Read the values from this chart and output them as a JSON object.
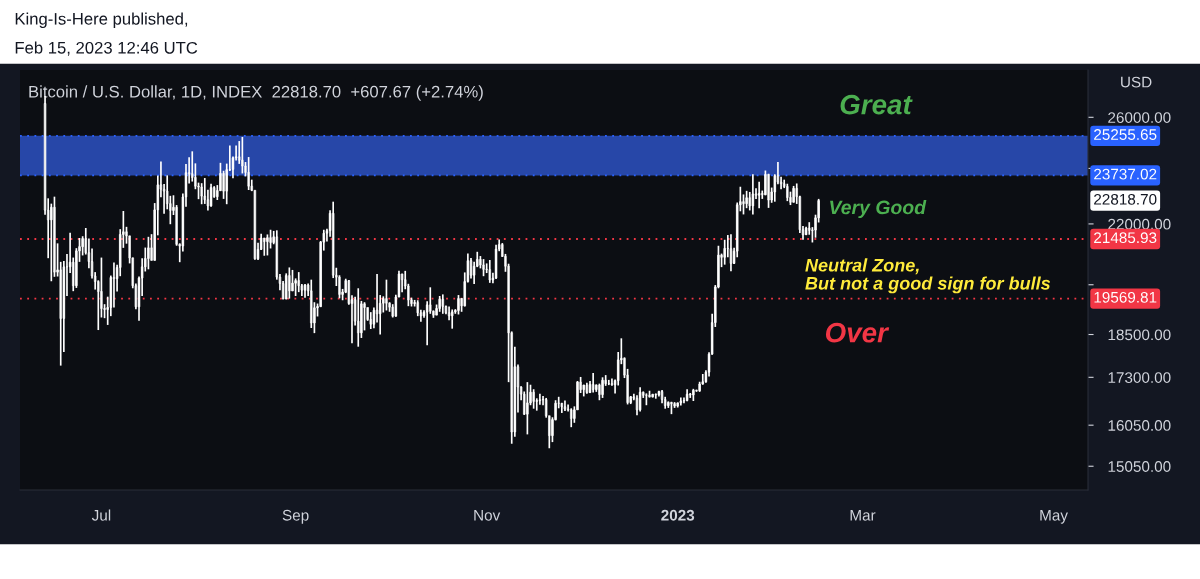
{
  "chart_data": {
    "type": "candlestick",
    "title": "Bitcoin / U.S. Dollar, 1D, INDEX  22818.70  +607.67 (+2.74%)",
    "subtitle": "Feb 15, 2023 12:46 UTC",
    "ylabel": "USD",
    "annotations": [
      "King-Is-Here published,",
      "Great",
      "Very Good",
      "Neutral Zone,\nBut not a good sign for bulls",
      "Over",
      "22818.70"
    ],
    "log": true,
    "grid": false,
    "color": "#ffffff",
    "xlim": [
      "2022-06-05",
      "2023-05-12"
    ],
    "xticks": [
      {
        "value": "2022-07-01",
        "label": "Jul"
      },
      {
        "value": "2022-09-01",
        "label": "Sep"
      },
      {
        "value": "2022-11-01",
        "label": "Nov"
      },
      {
        "value": "2023-01-01",
        "label": "2023"
      },
      {
        "value": "2023-03-01",
        "label": "Mar"
      },
      {
        "value": "2023-05-01",
        "label": "May"
      }
    ],
    "ylim": [
      14500,
      28000
    ],
    "yticks": [
      {
        "value": 15050,
        "label": "15050.00"
      },
      {
        "value": 16050,
        "label": "16050.00"
      },
      {
        "value": 17300,
        "label": "17300.00"
      },
      {
        "value": 18500,
        "label": "18500.00"
      },
      {
        "value": 20000,
        "label": null
      },
      {
        "value": 22000,
        "label": "22000.00"
      },
      {
        "value": 24000,
        "label": null
      },
      {
        "value": 26000,
        "label": "26000.00"
      }
    ],
    "ref_lines": [
      {
        "axis": "y",
        "value": 25255.65,
        "label": "25255.65",
        "color": "#2962ff",
        "line_style": "dotted"
      },
      {
        "axis": "y",
        "value": 23737.02,
        "label": "23737.02",
        "color": "#2962ff",
        "line_style": "dotted"
      },
      {
        "axis": "y",
        "value": 21485.93,
        "label": "21485.93",
        "color": "#f23645",
        "line_style": "dotted"
      },
      {
        "axis": "y",
        "value": 19569.81,
        "label": "19569.81",
        "color": "#f23645",
        "line_style": "dotted"
      }
    ],
    "bands": [
      {
        "axis": "y",
        "from": 23737.02,
        "to": 25255.65,
        "color": "#2747a8"
      }
    ],
    "x": [
      "2022-06-13",
      "2022-06-14",
      "2022-06-15",
      "2022-06-16",
      "2022-06-17",
      "2022-06-18",
      "2022-06-19",
      "2022-06-20",
      "2022-06-21",
      "2022-06-22",
      "2022-06-23",
      "2022-06-24",
      "2022-06-25",
      "2022-06-26",
      "2022-06-27",
      "2022-06-28",
      "2022-06-29",
      "2022-06-30",
      "2022-07-01",
      "2022-07-02",
      "2022-07-03",
      "2022-07-04",
      "2022-07-05",
      "2022-07-06",
      "2022-07-07",
      "2022-07-08",
      "2022-07-09",
      "2022-07-10",
      "2022-07-11",
      "2022-07-12",
      "2022-07-13",
      "2022-07-14",
      "2022-07-15",
      "2022-07-16",
      "2022-07-17",
      "2022-07-18",
      "2022-07-19",
      "2022-07-20",
      "2022-07-21",
      "2022-07-22",
      "2022-07-23",
      "2022-07-24",
      "2022-07-25",
      "2022-07-26",
      "2022-07-27",
      "2022-07-28",
      "2022-07-29",
      "2022-07-30",
      "2022-07-31",
      "2022-08-01",
      "2022-08-02",
      "2022-08-03",
      "2022-08-04",
      "2022-08-05",
      "2022-08-06",
      "2022-08-07",
      "2022-08-08",
      "2022-08-09",
      "2022-08-10",
      "2022-08-11",
      "2022-08-12",
      "2022-08-13",
      "2022-08-14",
      "2022-08-15",
      "2022-08-16",
      "2022-08-17",
      "2022-08-18",
      "2022-08-19",
      "2022-08-20",
      "2022-08-21",
      "2022-08-22",
      "2022-08-23",
      "2022-08-24",
      "2022-08-25",
      "2022-08-26",
      "2022-08-27",
      "2022-08-28",
      "2022-08-29",
      "2022-08-30",
      "2022-08-31",
      "2022-09-01",
      "2022-09-02",
      "2022-09-03",
      "2022-09-04",
      "2022-09-05",
      "2022-09-06",
      "2022-09-07",
      "2022-09-08",
      "2022-09-09",
      "2022-09-10",
      "2022-09-11",
      "2022-09-12",
      "2022-09-13",
      "2022-09-14",
      "2022-09-15",
      "2022-09-16",
      "2022-09-17",
      "2022-09-18",
      "2022-09-19",
      "2022-09-20",
      "2022-09-21",
      "2022-09-22",
      "2022-09-23",
      "2022-09-24",
      "2022-09-25",
      "2022-09-26",
      "2022-09-27",
      "2022-09-28",
      "2022-09-29",
      "2022-09-30",
      "2022-10-01",
      "2022-10-02",
      "2022-10-03",
      "2022-10-04",
      "2022-10-05",
      "2022-10-06",
      "2022-10-07",
      "2022-10-08",
      "2022-10-09",
      "2022-10-10",
      "2022-10-11",
      "2022-10-12",
      "2022-10-13",
      "2022-10-14",
      "2022-10-15",
      "2022-10-16",
      "2022-10-17",
      "2022-10-18",
      "2022-10-19",
      "2022-10-20",
      "2022-10-21",
      "2022-10-22",
      "2022-10-23",
      "2022-10-24",
      "2022-10-25",
      "2022-10-26",
      "2022-10-27",
      "2022-10-28",
      "2022-10-29",
      "2022-10-30",
      "2022-10-31",
      "2022-11-01",
      "2022-11-02",
      "2022-11-03",
      "2022-11-04",
      "2022-11-05",
      "2022-11-06",
      "2022-11-07",
      "2022-11-08",
      "2022-11-09",
      "2022-11-10",
      "2022-11-11",
      "2022-11-12",
      "2022-11-13",
      "2022-11-14",
      "2022-11-15",
      "2022-11-16",
      "2022-11-17",
      "2022-11-18",
      "2022-11-19",
      "2022-11-20",
      "2022-11-21",
      "2022-11-22",
      "2022-11-23",
      "2022-11-24",
      "2022-11-25",
      "2022-11-26",
      "2022-11-27",
      "2022-11-28",
      "2022-11-29",
      "2022-11-30",
      "2022-12-01",
      "2022-12-02",
      "2022-12-03",
      "2022-12-04",
      "2022-12-05",
      "2022-12-06",
      "2022-12-07",
      "2022-12-08",
      "2022-12-09",
      "2022-12-10",
      "2022-12-11",
      "2022-12-12",
      "2022-12-13",
      "2022-12-14",
      "2022-12-15",
      "2022-12-16",
      "2022-12-17",
      "2022-12-18",
      "2022-12-19",
      "2022-12-20",
      "2022-12-21",
      "2022-12-22",
      "2022-12-23",
      "2022-12-24",
      "2022-12-25",
      "2022-12-26",
      "2022-12-27",
      "2022-12-28",
      "2022-12-29",
      "2022-12-30",
      "2022-12-31",
      "2023-01-01",
      "2023-01-02",
      "2023-01-03",
      "2023-01-04",
      "2023-01-05",
      "2023-01-06",
      "2023-01-07",
      "2023-01-08",
      "2023-01-09",
      "2023-01-10",
      "2023-01-11",
      "2023-01-12",
      "2023-01-13",
      "2023-01-14",
      "2023-01-15",
      "2023-01-16",
      "2023-01-17",
      "2023-01-18",
      "2023-01-19",
      "2023-01-20",
      "2023-01-21",
      "2023-01-22",
      "2023-01-23",
      "2023-01-24",
      "2023-01-25",
      "2023-01-26",
      "2023-01-27",
      "2023-01-28",
      "2023-01-29",
      "2023-01-30",
      "2023-01-31",
      "2023-02-01",
      "2023-02-02",
      "2023-02-03",
      "2023-02-04",
      "2023-02-05",
      "2023-02-06",
      "2023-02-07",
      "2023-02-08",
      "2023-02-09",
      "2023-02-10",
      "2023-02-11",
      "2023-02-12",
      "2023-02-13",
      "2023-02-14",
      "2023-02-15"
    ],
    "ohlc": [
      [
        26570,
        26880,
        22320,
        22480
      ],
      [
        22480,
        22900,
        20850,
        22140
      ],
      [
        22140,
        22710,
        20110,
        22580
      ],
      [
        22580,
        22960,
        20250,
        20400
      ],
      [
        20400,
        21340,
        20260,
        20470
      ],
      [
        20470,
        20730,
        17620,
        18970
      ],
      [
        18970,
        20760,
        18000,
        20570
      ],
      [
        20570,
        20990,
        19650,
        20570
      ],
      [
        20570,
        21700,
        20370,
        20720
      ],
      [
        20720,
        20870,
        19800,
        19970
      ],
      [
        19970,
        21180,
        19900,
        21090
      ],
      [
        21090,
        21520,
        20730,
        21230
      ],
      [
        21230,
        21580,
        20940,
        21500
      ],
      [
        21500,
        21860,
        20970,
        21030
      ],
      [
        21030,
        21500,
        20520,
        20740
      ],
      [
        20740,
        21170,
        20200,
        20280
      ],
      [
        20280,
        20400,
        19850,
        20100
      ],
      [
        20100,
        20140,
        18630,
        19790
      ],
      [
        19790,
        20870,
        19000,
        19270
      ],
      [
        19270,
        19400,
        18980,
        19240
      ],
      [
        19240,
        19630,
        18780,
        19300
      ],
      [
        19300,
        20290,
        19040,
        20230
      ],
      [
        20230,
        20710,
        19300,
        20190
      ],
      [
        20190,
        20640,
        19790,
        20550
      ],
      [
        20550,
        21820,
        20270,
        21640
      ],
      [
        21640,
        22450,
        21190,
        21730
      ],
      [
        21730,
        21900,
        21330,
        21590
      ],
      [
        21590,
        21600,
        20680,
        20860
      ],
      [
        20860,
        20870,
        19890,
        19970
      ],
      [
        19970,
        20040,
        19250,
        19320
      ],
      [
        19320,
        20260,
        18900,
        20210
      ],
      [
        20210,
        20850,
        19650,
        20570
      ],
      [
        20570,
        21200,
        20420,
        20840
      ],
      [
        20840,
        21560,
        20490,
        21190
      ],
      [
        21190,
        21650,
        20770,
        20780
      ],
      [
        20780,
        22730,
        20770,
        22490
      ],
      [
        22490,
        23730,
        21610,
        23390
      ],
      [
        23390,
        24260,
        22940,
        23230
      ],
      [
        23230,
        23420,
        22350,
        23160
      ],
      [
        23160,
        23740,
        22510,
        22710
      ],
      [
        22710,
        22990,
        21990,
        22470
      ],
      [
        22470,
        23010,
        22310,
        22580
      ],
      [
        22580,
        22660,
        21260,
        21310
      ],
      [
        21310,
        21340,
        20720,
        21250
      ],
      [
        21250,
        23070,
        21070,
        22950
      ],
      [
        22950,
        24170,
        22600,
        23840
      ],
      [
        23840,
        24420,
        23440,
        23800
      ],
      [
        23800,
        24650,
        23510,
        23660
      ],
      [
        23660,
        24190,
        23230,
        23340
      ],
      [
        23340,
        23470,
        22870,
        23310
      ],
      [
        23310,
        23450,
        22690,
        22980
      ],
      [
        22980,
        23640,
        22700,
        22850
      ],
      [
        22850,
        23210,
        22470,
        22630
      ],
      [
        22630,
        23430,
        22600,
        23290
      ],
      [
        23290,
        23340,
        22920,
        22960
      ],
      [
        22960,
        23380,
        22840,
        23180
      ],
      [
        23180,
        24210,
        23160,
        23810
      ],
      [
        23810,
        23910,
        22880,
        23160
      ],
      [
        23160,
        24180,
        22690,
        23950
      ],
      [
        23950,
        24880,
        23900,
        23960
      ],
      [
        23960,
        24450,
        23630,
        24400
      ],
      [
        24400,
        24880,
        24300,
        24440
      ],
      [
        24440,
        25050,
        24170,
        24310
      ],
      [
        24310,
        25210,
        23810,
        24090
      ],
      [
        24090,
        24240,
        23700,
        23850
      ],
      [
        23850,
        24430,
        23200,
        23340
      ],
      [
        23340,
        23580,
        23160,
        23190
      ],
      [
        23190,
        23190,
        20800,
        20830
      ],
      [
        20830,
        21360,
        20790,
        21140
      ],
      [
        21140,
        21660,
        21120,
        21520
      ],
      [
        21520,
        21520,
        20930,
        21400
      ],
      [
        21400,
        21640,
        20940,
        21530
      ],
      [
        21530,
        21800,
        21170,
        21370
      ],
      [
        21370,
        21760,
        21310,
        21560
      ],
      [
        21560,
        21780,
        20160,
        20240
      ],
      [
        20240,
        20340,
        19830,
        20040
      ],
      [
        20040,
        20120,
        19550,
        19560
      ],
      [
        19560,
        20360,
        19550,
        20290
      ],
      [
        20290,
        20550,
        19570,
        19810
      ],
      [
        19810,
        20470,
        19800,
        20050
      ],
      [
        20050,
        20200,
        19650,
        20130
      ],
      [
        20130,
        20400,
        19770,
        19970
      ],
      [
        19970,
        20020,
        19650,
        19830
      ],
      [
        19830,
        20020,
        19600,
        19990
      ],
      [
        19990,
        20040,
        19650,
        19810
      ],
      [
        19810,
        20160,
        18690,
        18840
      ],
      [
        18840,
        19460,
        18540,
        19290
      ],
      [
        19290,
        19420,
        19030,
        19330
      ],
      [
        19330,
        21420,
        19310,
        21380
      ],
      [
        21380,
        21800,
        21100,
        21680
      ],
      [
        21680,
        21830,
        21400,
        21770
      ],
      [
        21770,
        22480,
        21560,
        22370
      ],
      [
        22370,
        22780,
        20210,
        20300
      ],
      [
        20300,
        20540,
        19960,
        20240
      ],
      [
        20240,
        20300,
        19580,
        19700
      ],
      [
        19700,
        19870,
        19520,
        19770
      ],
      [
        19770,
        20190,
        19740,
        20130
      ],
      [
        20130,
        20150,
        19380,
        19420
      ],
      [
        19420,
        19670,
        18250,
        19540
      ],
      [
        19540,
        19630,
        18760,
        18890
      ],
      [
        18890,
        19890,
        18150,
        18550
      ],
      [
        18550,
        19500,
        18400,
        19410
      ],
      [
        19410,
        19460,
        18620,
        19300
      ],
      [
        19300,
        19300,
        18900,
        18940
      ],
      [
        18940,
        19160,
        18660,
        18800
      ],
      [
        18800,
        19300,
        18680,
        19220
      ],
      [
        19220,
        20340,
        18850,
        19110
      ],
      [
        19110,
        19680,
        18500,
        19430
      ],
      [
        19430,
        19640,
        19150,
        19570
      ],
      [
        19570,
        20160,
        19210,
        19430
      ],
      [
        19430,
        19460,
        19170,
        19310
      ],
      [
        19310,
        19400,
        19000,
        19040
      ],
      [
        19040,
        19690,
        19020,
        19620
      ],
      [
        19620,
        20440,
        19610,
        20340
      ],
      [
        20340,
        20350,
        19770,
        20160
      ],
      [
        20160,
        20440,
        19860,
        19960
      ],
      [
        19960,
        20030,
        19340,
        19530
      ],
      [
        19530,
        19600,
        19330,
        19420
      ],
      [
        19420,
        19530,
        19330,
        19450
      ],
      [
        19450,
        19520,
        19040,
        19140
      ],
      [
        19140,
        19230,
        18870,
        19050
      ],
      [
        19050,
        19220,
        18990,
        19160
      ],
      [
        19160,
        19490,
        18190,
        19380
      ],
      [
        19380,
        19920,
        19110,
        19190
      ],
      [
        19190,
        19210,
        18990,
        19070
      ],
      [
        19070,
        19390,
        19070,
        19270
      ],
      [
        19270,
        19650,
        19170,
        19550
      ],
      [
        19550,
        19700,
        19110,
        19330
      ],
      [
        19330,
        19360,
        19100,
        19140
      ],
      [
        19140,
        19330,
        18920,
        19050
      ],
      [
        19050,
        19240,
        18670,
        19170
      ],
      [
        19170,
        19250,
        19110,
        19210
      ],
      [
        19210,
        19680,
        19090,
        19570
      ],
      [
        19570,
        19590,
        19170,
        19350
      ],
      [
        19350,
        20390,
        19330,
        20100
      ],
      [
        20100,
        21000,
        20070,
        20770
      ],
      [
        20770,
        20860,
        20200,
        20300
      ],
      [
        20300,
        20730,
        20020,
        20590
      ],
      [
        20590,
        21060,
        20560,
        20810
      ],
      [
        20810,
        20920,
        20520,
        20630
      ],
      [
        20630,
        20820,
        20270,
        20490
      ],
      [
        20490,
        20680,
        20370,
        20480
      ],
      [
        20480,
        20790,
        20060,
        20150
      ],
      [
        20150,
        20380,
        20050,
        20210
      ],
      [
        20210,
        21290,
        20180,
        21150
      ],
      [
        21150,
        21470,
        21080,
        21300
      ],
      [
        21300,
        21350,
        20890,
        20910
      ],
      [
        20910,
        20990,
        20410,
        20590
      ],
      [
        20590,
        20670,
        17170,
        18550
      ],
      [
        18550,
        18590,
        15590,
        15880
      ],
      [
        15880,
        18150,
        15760,
        17590
      ],
      [
        17590,
        17650,
        16370,
        17040
      ],
      [
        17040,
        17060,
        16690,
        16850
      ],
      [
        16850,
        16920,
        16310,
        16330
      ],
      [
        16330,
        17170,
        15820,
        16620
      ],
      [
        16620,
        17100,
        16560,
        16900
      ],
      [
        16900,
        16980,
        16470,
        16660
      ],
      [
        16660,
        16740,
        16420,
        16680
      ],
      [
        16680,
        16860,
        16570,
        16700
      ],
      [
        16700,
        16800,
        16560,
        16710
      ],
      [
        16710,
        16750,
        16240,
        16290
      ],
      [
        16290,
        16290,
        15480,
        15790
      ],
      [
        15790,
        16250,
        15630,
        16190
      ],
      [
        16190,
        16690,
        16170,
        16610
      ],
      [
        16610,
        16780,
        16480,
        16610
      ],
      [
        16610,
        16620,
        16360,
        16520
      ],
      [
        16520,
        16680,
        16410,
        16460
      ],
      [
        16460,
        16580,
        16400,
        16440
      ],
      [
        16440,
        16480,
        16000,
        16220
      ],
      [
        16220,
        16530,
        16110,
        16440
      ],
      [
        16440,
        17200,
        16440,
        17170
      ],
      [
        17170,
        17310,
        16880,
        16970
      ],
      [
        16970,
        17100,
        16790,
        17090
      ],
      [
        17090,
        17150,
        16860,
        16890
      ],
      [
        16890,
        17200,
        16880,
        17110
      ],
      [
        17110,
        17420,
        16890,
        16970
      ],
      [
        16970,
        17110,
        16910,
        17090
      ],
      [
        17090,
        17130,
        16690,
        16840
      ],
      [
        16840,
        17300,
        16750,
        17220
      ],
      [
        17220,
        17360,
        17070,
        17130
      ],
      [
        17130,
        17230,
        17090,
        17130
      ],
      [
        17130,
        17270,
        17070,
        17100
      ],
      [
        17100,
        17240,
        16870,
        17210
      ],
      [
        17210,
        18000,
        17080,
        17780
      ],
      [
        17780,
        18390,
        17660,
        17820
      ],
      [
        17820,
        17850,
        17280,
        17360
      ],
      [
        17360,
        17530,
        16580,
        16630
      ],
      [
        16630,
        16800,
        16590,
        16780
      ],
      [
        16780,
        16860,
        16690,
        16740
      ],
      [
        16740,
        16820,
        16300,
        16440
      ],
      [
        16440,
        17030,
        16400,
        16900
      ],
      [
        16900,
        16920,
        16750,
        16820
      ],
      [
        16820,
        16870,
        16560,
        16820
      ],
      [
        16820,
        16940,
        16760,
        16780
      ],
      [
        16780,
        16860,
        16760,
        16840
      ],
      [
        16840,
        16870,
        16730,
        16830
      ],
      [
        16830,
        16940,
        16790,
        16920
      ],
      [
        16920,
        16960,
        16610,
        16710
      ],
      [
        16710,
        16780,
        16470,
        16550
      ],
      [
        16550,
        16660,
        16490,
        16630
      ],
      [
        16630,
        16650,
        16330,
        16600
      ],
      [
        16600,
        16640,
        16490,
        16540
      ],
      [
        16540,
        16630,
        16500,
        16620
      ],
      [
        16620,
        16760,
        16550,
        16670
      ],
      [
        16670,
        16760,
        16610,
        16680
      ],
      [
        16680,
        16980,
        16660,
        16850
      ],
      [
        16850,
        16880,
        16750,
        16830
      ],
      [
        16830,
        16990,
        16670,
        16950
      ],
      [
        16950,
        16970,
        16910,
        16940
      ],
      [
        16940,
        17180,
        16910,
        17120
      ],
      [
        17120,
        17390,
        17100,
        17180
      ],
      [
        17180,
        17490,
        17150,
        17440
      ],
      [
        17440,
        17990,
        17320,
        17940
      ],
      [
        17940,
        19110,
        17920,
        18850
      ],
      [
        18850,
        19990,
        18720,
        19930
      ],
      [
        19930,
        21260,
        19890,
        20950
      ],
      [
        20950,
        21000,
        20560,
        20880
      ],
      [
        20880,
        21460,
        20640,
        21170
      ],
      [
        21170,
        21620,
        20880,
        21160
      ],
      [
        21160,
        21650,
        20430,
        20680
      ],
      [
        20680,
        21190,
        20660,
        21080
      ],
      [
        21080,
        22750,
        20880,
        22670
      ],
      [
        22670,
        23320,
        22440,
        22780
      ],
      [
        22780,
        23040,
        22330,
        22710
      ],
      [
        22710,
        23170,
        22550,
        22920
      ],
      [
        22920,
        23130,
        22470,
        22630
      ],
      [
        22630,
        23780,
        22330,
        23060
      ],
      [
        23060,
        23260,
        22880,
        23010
      ],
      [
        23010,
        23500,
        22550,
        23080
      ],
      [
        23080,
        23180,
        22880,
        23030
      ],
      [
        23030,
        23920,
        23010,
        23770
      ],
      [
        23770,
        23800,
        22560,
        22840
      ],
      [
        22840,
        23290,
        22740,
        23130
      ],
      [
        23130,
        23780,
        22780,
        23730
      ],
      [
        23730,
        24240,
        23410,
        23490
      ],
      [
        23490,
        23690,
        23230,
        23430
      ],
      [
        23430,
        23580,
        23270,
        23330
      ],
      [
        23330,
        23430,
        22800,
        22930
      ],
      [
        22930,
        23140,
        22660,
        22760
      ],
      [
        22760,
        23350,
        22750,
        23260
      ],
      [
        23260,
        23440,
        22700,
        22960
      ],
      [
        22960,
        22990,
        21690,
        21800
      ],
      [
        21800,
        21930,
        21460,
        21630
      ],
      [
        21630,
        21900,
        21620,
        21860
      ],
      [
        21860,
        22060,
        21630,
        21780
      ],
      [
        21780,
        21890,
        21370,
        21790
      ],
      [
        21790,
        22320,
        21530,
        22210
      ],
      [
        22210,
        22880,
        22050,
        22818.7
      ]
    ]
  }
}
